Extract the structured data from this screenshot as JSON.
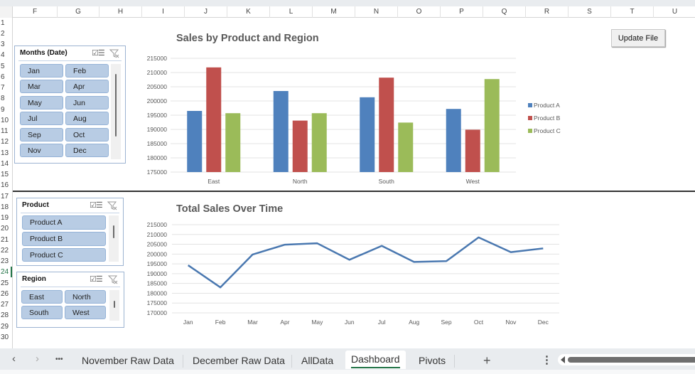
{
  "column_headers": [
    "F",
    "G",
    "H",
    "I",
    "J",
    "K",
    "L",
    "M",
    "N",
    "O",
    "P",
    "Q",
    "R",
    "S",
    "T",
    "U"
  ],
  "row_headers": [
    "1",
    "2",
    "3",
    "4",
    "5",
    "6",
    "7",
    "8",
    "9",
    "10",
    "11",
    "12",
    "13",
    "14",
    "15",
    "16",
    "17",
    "18",
    "19",
    "20",
    "21",
    "22",
    "23",
    "24",
    "25",
    "26",
    "27",
    "28",
    "29",
    "30"
  ],
  "active_row": "24",
  "update_button": {
    "label": "Update File"
  },
  "slicers": {
    "months": {
      "title": "Months (Date)",
      "items": [
        "Jan",
        "Feb",
        "Mar",
        "Apr",
        "May",
        "Jun",
        "Jul",
        "Aug",
        "Sep",
        "Oct",
        "Nov",
        "Dec"
      ]
    },
    "product": {
      "title": "Product",
      "items": [
        "Product A",
        "Product B",
        "Product C"
      ]
    },
    "region": {
      "title": "Region",
      "items": [
        "East",
        "North",
        "South",
        "West"
      ]
    }
  },
  "colors": {
    "product_a": "#4f81bd",
    "product_b": "#c0504d",
    "product_c": "#9bbb59",
    "line": "#4a78b0",
    "accent": "#217346",
    "slicer_button": "#b8cce4"
  },
  "chart_data": [
    {
      "type": "bar",
      "title": "Sales by Product and Region",
      "categories": [
        "East",
        "North",
        "South",
        "West"
      ],
      "series": [
        {
          "name": "Product A",
          "values": [
            196500,
            203500,
            201300,
            197200
          ]
        },
        {
          "name": "Product B",
          "values": [
            211800,
            193100,
            208200,
            189900
          ]
        },
        {
          "name": "Product C",
          "values": [
            195700,
            195700,
            192400,
            207700
          ]
        }
      ],
      "yticks": [
        "215000",
        "210000",
        "205000",
        "200000",
        "195000",
        "190000",
        "185000",
        "180000",
        "175000"
      ],
      "ylim": [
        175000,
        215000
      ],
      "xlabel": "",
      "ylabel": "",
      "grid": true,
      "legend_position": "right"
    },
    {
      "type": "line",
      "title": "Total Sales Over Time",
      "categories": [
        "Jan",
        "Feb",
        "Mar",
        "Apr",
        "May",
        "Jun",
        "Jul",
        "Aug",
        "Sep",
        "Oct",
        "Nov",
        "Dec"
      ],
      "series": [
        {
          "name": "Total",
          "values": [
            194300,
            183000,
            199800,
            204800,
            205500,
            197100,
            204200,
            196000,
            196400,
            208500,
            201000,
            202900
          ]
        }
      ],
      "yticks": [
        "215000",
        "210000",
        "205000",
        "200000",
        "195000",
        "190000",
        "185000",
        "180000",
        "175000",
        "170000"
      ],
      "ylim": [
        170000,
        215000
      ],
      "xlabel": "",
      "ylabel": "",
      "grid": true,
      "legend_position": "none"
    }
  ],
  "sheet_tabs": {
    "nav_prev": "‹",
    "nav_next": "›",
    "more": "•••",
    "tabs": [
      "November Raw Data",
      "December Raw Data",
      "AllData",
      "Dashboard",
      "Pivots"
    ],
    "active": "Dashboard",
    "add": "+",
    "options": "⋮"
  }
}
